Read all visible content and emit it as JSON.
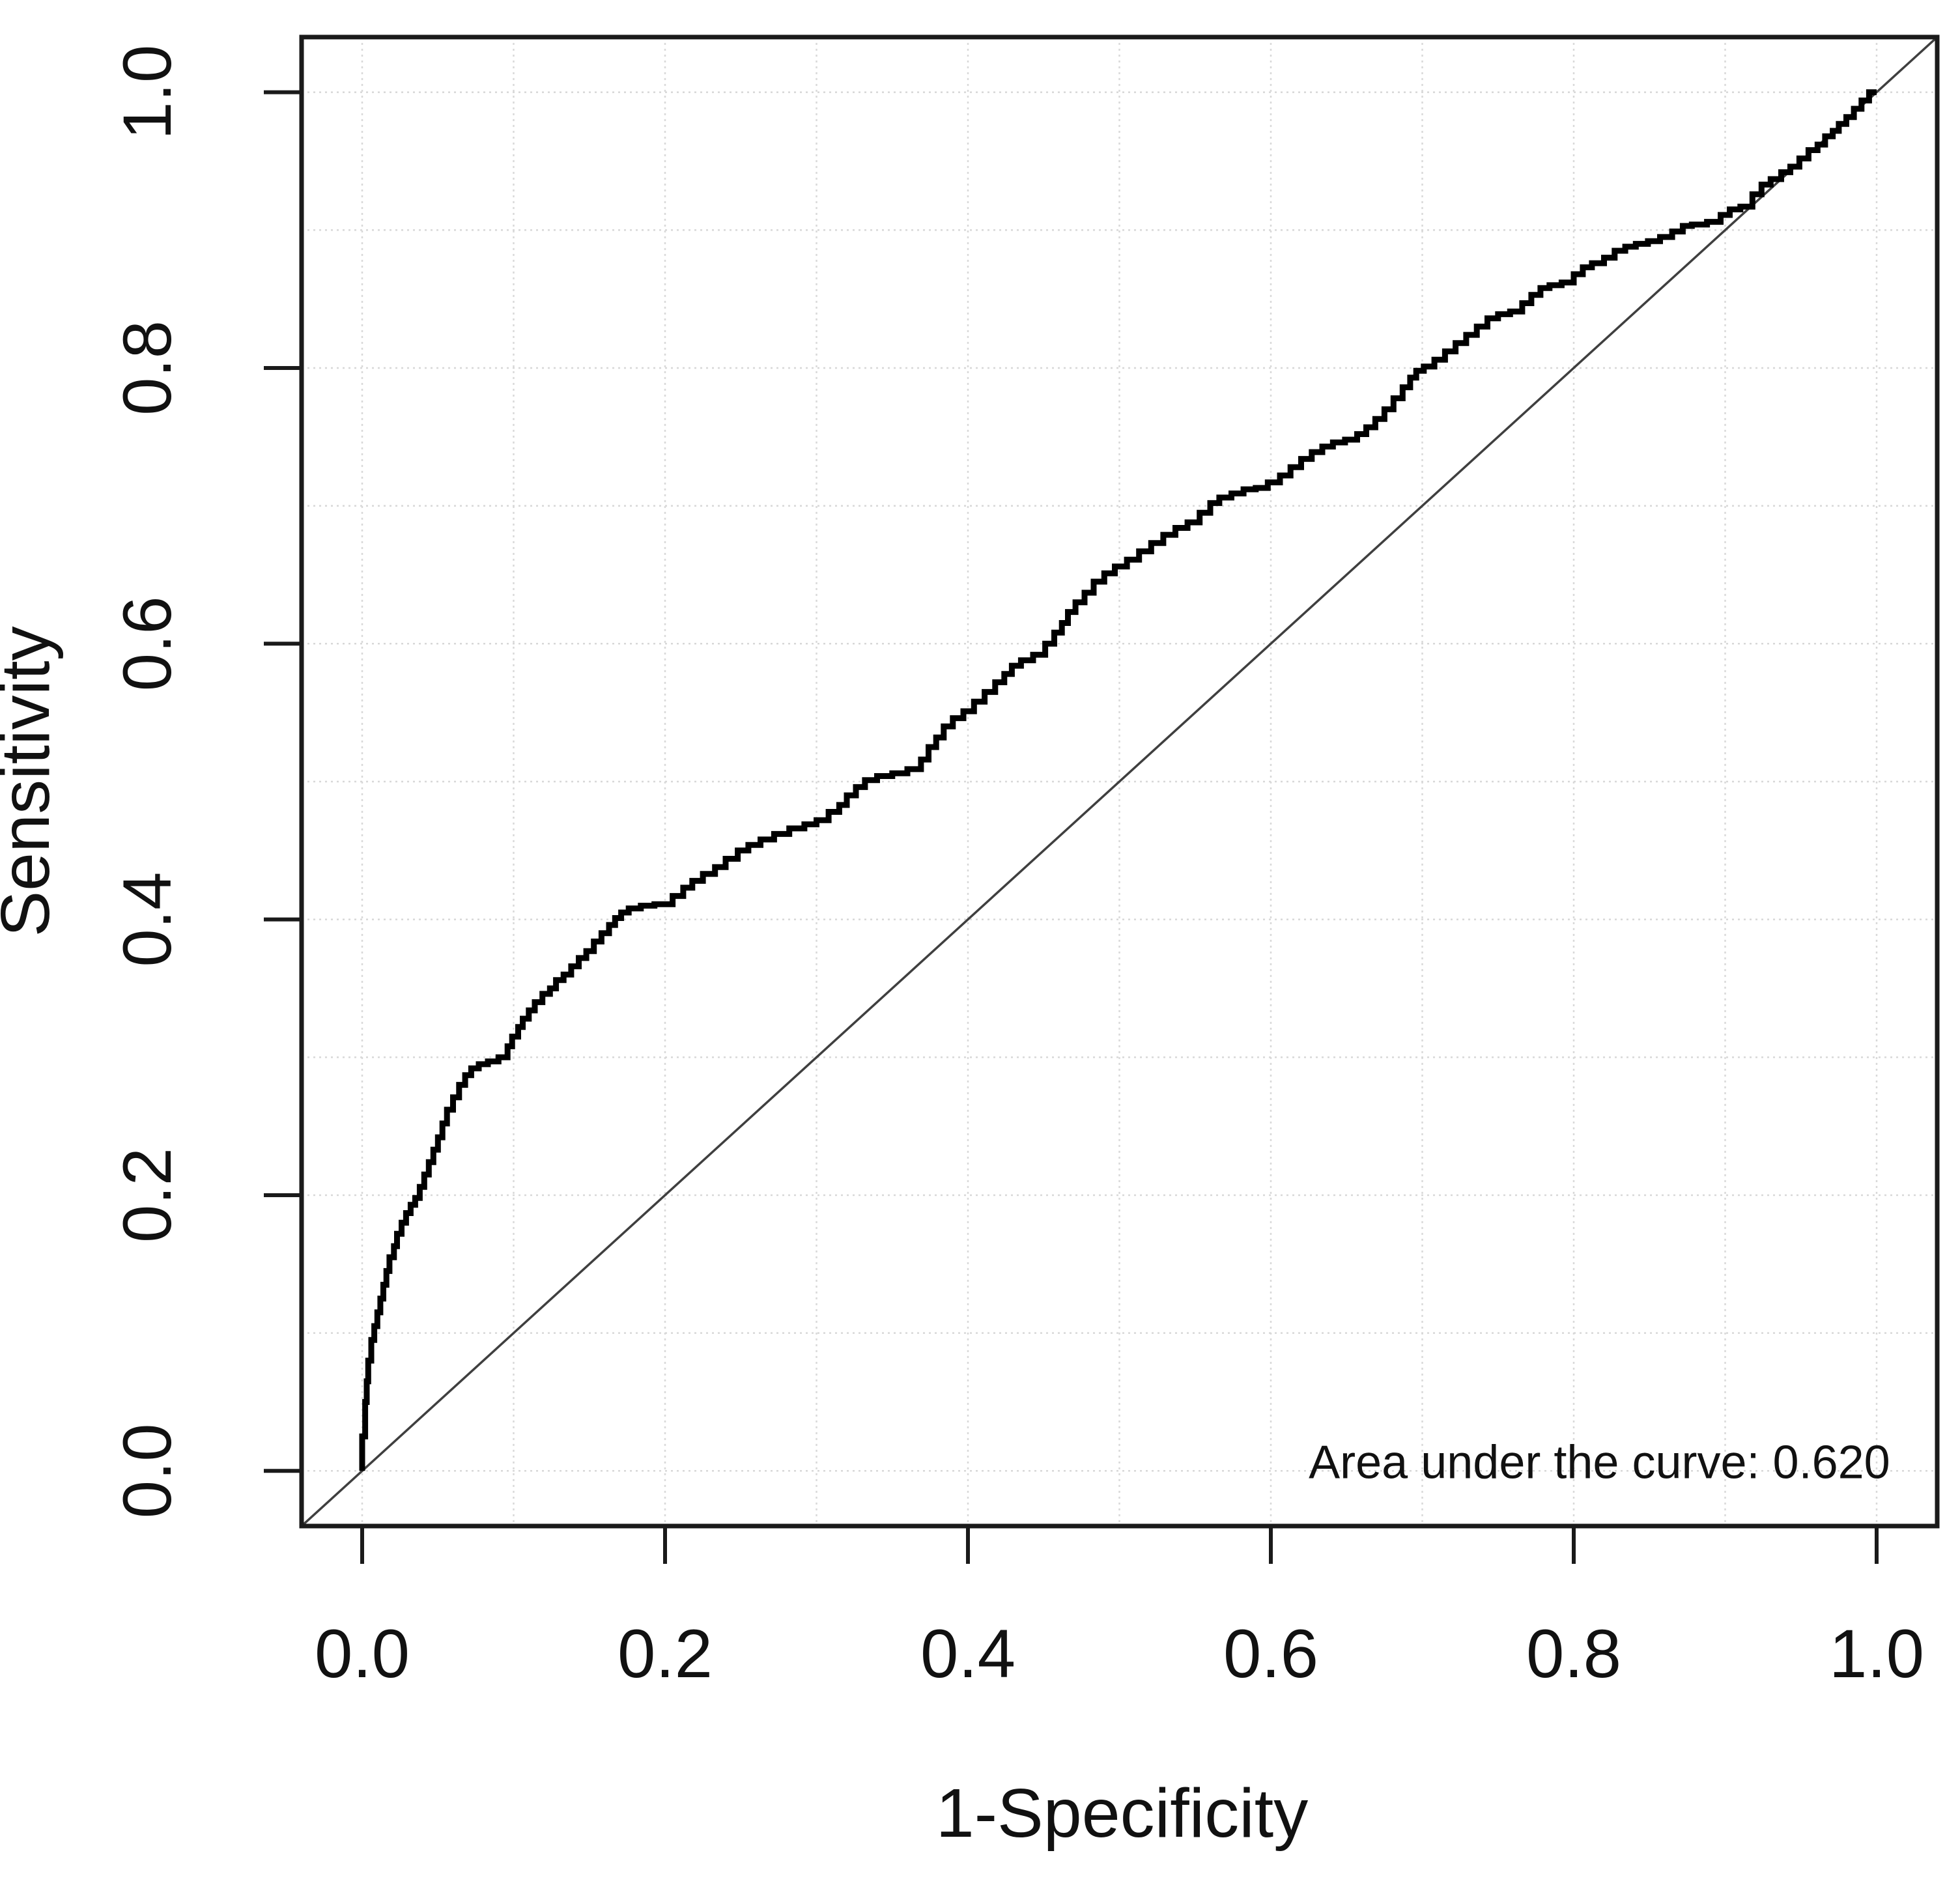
{
  "figure": {
    "kind": "ROC curve statistical plot",
    "background_color": "#ffffff"
  },
  "chart_data": {
    "type": "line",
    "title": "",
    "xlabel": "1-Specificity",
    "ylabel": "Sensitivity",
    "xlim": [
      -0.04,
      1.04
    ],
    "ylim": [
      -0.04,
      1.04
    ],
    "legend": "none",
    "grid": {
      "from": 0,
      "to": 1,
      "step": 0.1,
      "style": "dotted",
      "color": "#d8d8d8"
    },
    "x_ticks": {
      "values": [
        0,
        0.2,
        0.4,
        0.6,
        0.8,
        1.0
      ],
      "labels": [
        "0.0",
        "0.2",
        "0.4",
        "0.6",
        "0.8",
        "1.0"
      ]
    },
    "y_ticks": {
      "values": [
        0,
        0.2,
        0.4,
        0.6,
        0.8,
        1.0
      ],
      "labels": [
        "0.0",
        "0.2",
        "0.4",
        "0.6",
        "0.8",
        "1.0"
      ]
    },
    "auc": 0.62,
    "annotations": [
      {
        "text": "Area under the curve: 0.620",
        "x": 0.625,
        "y": 0.005,
        "anchor": "start"
      }
    ],
    "series": [
      {
        "name": "ROC curve",
        "style": "step",
        "color": "#000000",
        "line_width": 9,
        "points": [
          [
            0,
            0
          ],
          [
            0.002,
            0.025
          ],
          [
            0.003,
            0.05
          ],
          [
            0.004,
            0.065
          ],
          [
            0.006,
            0.08
          ],
          [
            0.008,
            0.095
          ],
          [
            0.01,
            0.105
          ],
          [
            0.012,
            0.115
          ],
          [
            0.014,
            0.125
          ],
          [
            0.016,
            0.135
          ],
          [
            0.018,
            0.145
          ],
          [
            0.021,
            0.155
          ],
          [
            0.023,
            0.163
          ],
          [
            0.026,
            0.172
          ],
          [
            0.029,
            0.18
          ],
          [
            0.032,
            0.187
          ],
          [
            0.035,
            0.193
          ],
          [
            0.038,
            0.198
          ],
          [
            0.041,
            0.206
          ],
          [
            0.044,
            0.215
          ],
          [
            0.047,
            0.224
          ],
          [
            0.05,
            0.233
          ],
          [
            0.053,
            0.242
          ],
          [
            0.056,
            0.252
          ],
          [
            0.06,
            0.262
          ],
          [
            0.064,
            0.271
          ],
          [
            0.068,
            0.28
          ],
          [
            0.072,
            0.287
          ],
          [
            0.077,
            0.292
          ],
          [
            0.083,
            0.295
          ],
          [
            0.09,
            0.297
          ],
          [
            0.096,
            0.3
          ],
          [
            0.099,
            0.308
          ],
          [
            0.103,
            0.315
          ],
          [
            0.106,
            0.322
          ],
          [
            0.11,
            0.328
          ],
          [
            0.114,
            0.334
          ],
          [
            0.119,
            0.34
          ],
          [
            0.124,
            0.346
          ],
          [
            0.128,
            0.35
          ],
          [
            0.133,
            0.356
          ],
          [
            0.138,
            0.36
          ],
          [
            0.143,
            0.366
          ],
          [
            0.148,
            0.372
          ],
          [
            0.153,
            0.377
          ],
          [
            0.158,
            0.384
          ],
          [
            0.163,
            0.39
          ],
          [
            0.167,
            0.396
          ],
          [
            0.171,
            0.401
          ],
          [
            0.176,
            0.405
          ],
          [
            0.184,
            0.408
          ],
          [
            0.193,
            0.41
          ],
          [
            0.205,
            0.411
          ],
          [
            0.212,
            0.417
          ],
          [
            0.218,
            0.423
          ],
          [
            0.225,
            0.428
          ],
          [
            0.233,
            0.433
          ],
          [
            0.24,
            0.438
          ],
          [
            0.248,
            0.444
          ],
          [
            0.255,
            0.45
          ],
          [
            0.263,
            0.454
          ],
          [
            0.272,
            0.458
          ],
          [
            0.282,
            0.462
          ],
          [
            0.292,
            0.466
          ],
          [
            0.3,
            0.469
          ],
          [
            0.308,
            0.472
          ],
          [
            0.315,
            0.478
          ],
          [
            0.32,
            0.483
          ],
          [
            0.326,
            0.49
          ],
          [
            0.332,
            0.496
          ],
          [
            0.34,
            0.501
          ],
          [
            0.35,
            0.504
          ],
          [
            0.36,
            0.506
          ],
          [
            0.369,
            0.509
          ],
          [
            0.374,
            0.516
          ],
          [
            0.379,
            0.525
          ],
          [
            0.384,
            0.532
          ],
          [
            0.39,
            0.54
          ],
          [
            0.397,
            0.546
          ],
          [
            0.404,
            0.551
          ],
          [
            0.411,
            0.558
          ],
          [
            0.418,
            0.565
          ],
          [
            0.424,
            0.572
          ],
          [
            0.429,
            0.578
          ],
          [
            0.435,
            0.584
          ],
          [
            0.443,
            0.588
          ],
          [
            0.451,
            0.592
          ],
          [
            0.457,
            0.6
          ],
          [
            0.462,
            0.608
          ],
          [
            0.466,
            0.615
          ],
          [
            0.471,
            0.623
          ],
          [
            0.477,
            0.63
          ],
          [
            0.483,
            0.637
          ],
          [
            0.49,
            0.645
          ],
          [
            0.497,
            0.651
          ],
          [
            0.505,
            0.656
          ],
          [
            0.513,
            0.661
          ],
          [
            0.521,
            0.667
          ],
          [
            0.529,
            0.673
          ],
          [
            0.537,
            0.679
          ],
          [
            0.545,
            0.684
          ],
          [
            0.553,
            0.688
          ],
          [
            0.56,
            0.695
          ],
          [
            0.566,
            0.702
          ],
          [
            0.574,
            0.706
          ],
          [
            0.582,
            0.709
          ],
          [
            0.59,
            0.712
          ],
          [
            0.598,
            0.713
          ],
          [
            0.606,
            0.717
          ],
          [
            0.613,
            0.722
          ],
          [
            0.62,
            0.728
          ],
          [
            0.627,
            0.734
          ],
          [
            0.634,
            0.739
          ],
          [
            0.641,
            0.743
          ],
          [
            0.649,
            0.746
          ],
          [
            0.657,
            0.748
          ],
          [
            0.663,
            0.752
          ],
          [
            0.669,
            0.757
          ],
          [
            0.675,
            0.763
          ],
          [
            0.681,
            0.77
          ],
          [
            0.687,
            0.778
          ],
          [
            0.692,
            0.786
          ],
          [
            0.696,
            0.793
          ],
          [
            0.701,
            0.798
          ],
          [
            0.708,
            0.801
          ],
          [
            0.715,
            0.806
          ],
          [
            0.722,
            0.812
          ],
          [
            0.729,
            0.818
          ],
          [
            0.736,
            0.824
          ],
          [
            0.743,
            0.83
          ],
          [
            0.75,
            0.836
          ],
          [
            0.758,
            0.839
          ],
          [
            0.766,
            0.841
          ],
          [
            0.772,
            0.847
          ],
          [
            0.778,
            0.853
          ],
          [
            0.784,
            0.858
          ],
          [
            0.792,
            0.86
          ],
          [
            0.8,
            0.862
          ],
          [
            0.806,
            0.868
          ],
          [
            0.812,
            0.873
          ],
          [
            0.82,
            0.876
          ],
          [
            0.827,
            0.88
          ],
          [
            0.834,
            0.885
          ],
          [
            0.841,
            0.888
          ],
          [
            0.849,
            0.89
          ],
          [
            0.857,
            0.892
          ],
          [
            0.865,
            0.895
          ],
          [
            0.872,
            0.899
          ],
          [
            0.878,
            0.903
          ],
          [
            0.888,
            0.904
          ],
          [
            0.897,
            0.906
          ],
          [
            0.903,
            0.911
          ],
          [
            0.91,
            0.915
          ],
          [
            0.918,
            0.917
          ],
          [
            0.924,
            0.926
          ],
          [
            0.93,
            0.933
          ],
          [
            0.937,
            0.937
          ],
          [
            0.943,
            0.942
          ],
          [
            0.949,
            0.946
          ],
          [
            0.955,
            0.952
          ],
          [
            0.961,
            0.958
          ],
          [
            0.966,
            0.962
          ],
          [
            0.971,
            0.968
          ],
          [
            0.975,
            0.972
          ],
          [
            0.98,
            0.977
          ],
          [
            0.985,
            0.982
          ],
          [
            0.99,
            0.988
          ],
          [
            0.995,
            0.994
          ],
          [
            1,
            1
          ]
        ]
      },
      {
        "name": "chance diagonal",
        "style": "line",
        "color": "#3f3f3f",
        "line_width": 3.5,
        "points": [
          [
            -0.04,
            -0.04
          ],
          [
            1.04,
            1.04
          ]
        ]
      }
    ]
  },
  "colors": {
    "curve": "#000000",
    "diagonal": "#3f3f3f",
    "grid": "#d8d8d8",
    "box": "#1a1a1a",
    "text": "#111111"
  }
}
